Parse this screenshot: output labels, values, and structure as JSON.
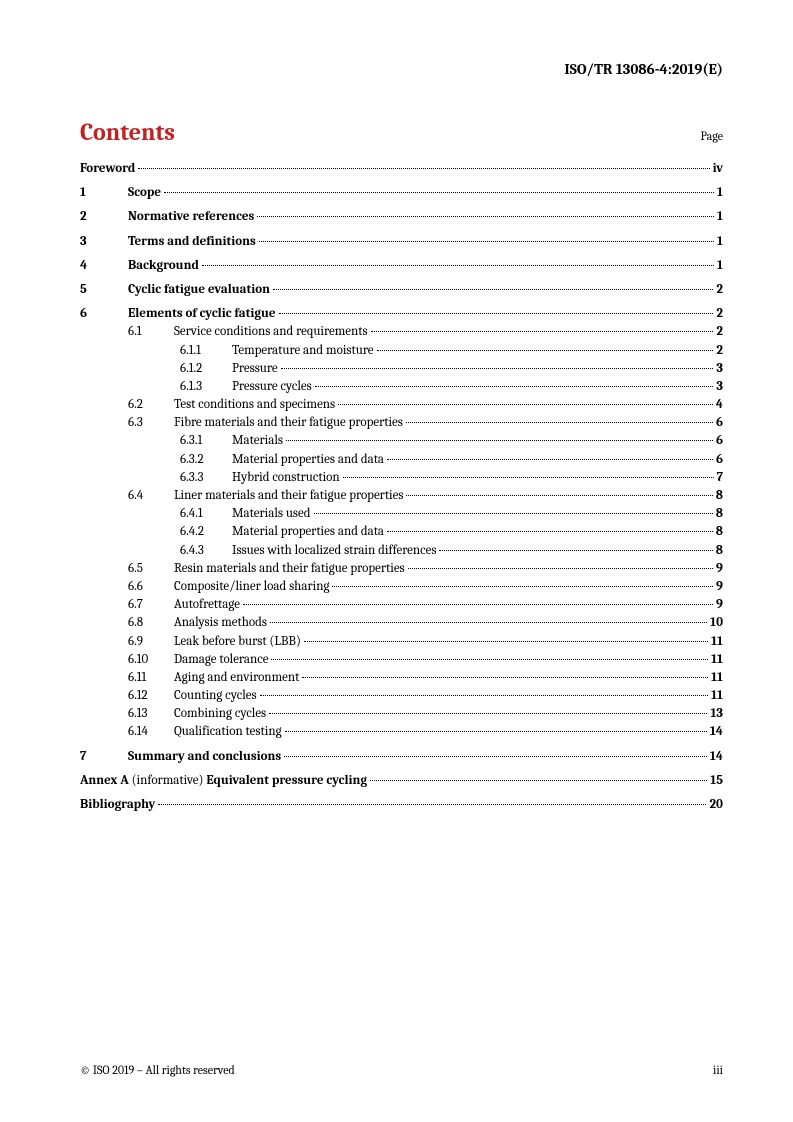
{
  "header_ref": "ISO/TR 13086-4:2019(E)",
  "contents_title": "Contents",
  "page_label": "Page",
  "toc": [
    {
      "level": 0,
      "num": "",
      "title": "Foreword",
      "bold": true,
      "page": "iv",
      "space": true
    },
    {
      "level": 0,
      "num": "1",
      "title": "Scope",
      "bold": true,
      "page": "1",
      "space": true
    },
    {
      "level": 0,
      "num": "2",
      "title": "Normative references",
      "bold": true,
      "page": "1",
      "space": true
    },
    {
      "level": 0,
      "num": "3",
      "title": "Terms and definitions",
      "bold": true,
      "page": "1",
      "space": true
    },
    {
      "level": 0,
      "num": "4",
      "title": "Background",
      "bold": true,
      "page": "1",
      "space": true
    },
    {
      "level": 0,
      "num": "5",
      "title": "Cyclic fatigue evaluation",
      "bold": true,
      "page": "2",
      "space": true
    },
    {
      "level": 0,
      "num": "6",
      "title": "Elements of cyclic fatigue",
      "bold": true,
      "page": "2",
      "space": true
    },
    {
      "level": 1,
      "num": "6.1",
      "title": "Service conditions and requirements",
      "page": "2"
    },
    {
      "level": 2,
      "num": "6.1.1",
      "title": "Temperature and moisture",
      "page": "2"
    },
    {
      "level": 2,
      "num": "6.1.2",
      "title": "Pressure",
      "page": "3"
    },
    {
      "level": 2,
      "num": "6.1.3",
      "title": "Pressure cycles",
      "page": "3"
    },
    {
      "level": 1,
      "num": "6.2",
      "title": "Test conditions and specimens",
      "page": "4"
    },
    {
      "level": 1,
      "num": "6.3",
      "title": "Fibre materials and their fatigue properties",
      "page": "6"
    },
    {
      "level": 2,
      "num": "6.3.1",
      "title": "Materials",
      "page": "6"
    },
    {
      "level": 2,
      "num": "6.3.2",
      "title": "Material properties and data",
      "page": "6"
    },
    {
      "level": 2,
      "num": "6.3.3",
      "title": "Hybrid construction",
      "page": "7"
    },
    {
      "level": 1,
      "num": "6.4",
      "title": "Liner materials and their fatigue properties",
      "page": "8"
    },
    {
      "level": 2,
      "num": "6.4.1",
      "title": "Materials used",
      "page": "8"
    },
    {
      "level": 2,
      "num": "6.4.2",
      "title": "Material properties and data",
      "page": "8"
    },
    {
      "level": 2,
      "num": "6.4.3",
      "title": "Issues with localized strain differences",
      "page": "8"
    },
    {
      "level": 1,
      "num": "6.5",
      "title": "Resin materials and their fatigue properties",
      "page": "9"
    },
    {
      "level": 1,
      "num": "6.6",
      "title": "Composite/liner load sharing",
      "page": "9"
    },
    {
      "level": 1,
      "num": "6.7",
      "title": "Autofrettage",
      "page": "9"
    },
    {
      "level": 1,
      "num": "6.8",
      "title": "Analysis methods",
      "page": "10"
    },
    {
      "level": 1,
      "num": "6.9",
      "title": "Leak before burst (LBB)",
      "page": "11"
    },
    {
      "level": 1,
      "num": "6.10",
      "title": "Damage tolerance",
      "page": "11"
    },
    {
      "level": 1,
      "num": "6.11",
      "title": "Aging and environment",
      "page": "11"
    },
    {
      "level": 1,
      "num": "6.12",
      "title": "Counting cycles",
      "page": "11"
    },
    {
      "level": 1,
      "num": "6.13",
      "title": "Combining cycles",
      "page": "13"
    },
    {
      "level": 1,
      "num": "6.14",
      "title": "Qualification testing",
      "page": "14"
    },
    {
      "level": 0,
      "num": "7",
      "title": "Summary and conclusions",
      "bold": true,
      "page": "14",
      "space": true
    }
  ],
  "annex": {
    "prefix": "Annex A",
    "mid": " (informative) ",
    "suffix": "Equivalent pressure cycling",
    "page": "15"
  },
  "bibliography": {
    "title": "Bibliography",
    "page": "20"
  },
  "footer_left": "© ISO 2019 – All rights reserved",
  "footer_right": "iii"
}
